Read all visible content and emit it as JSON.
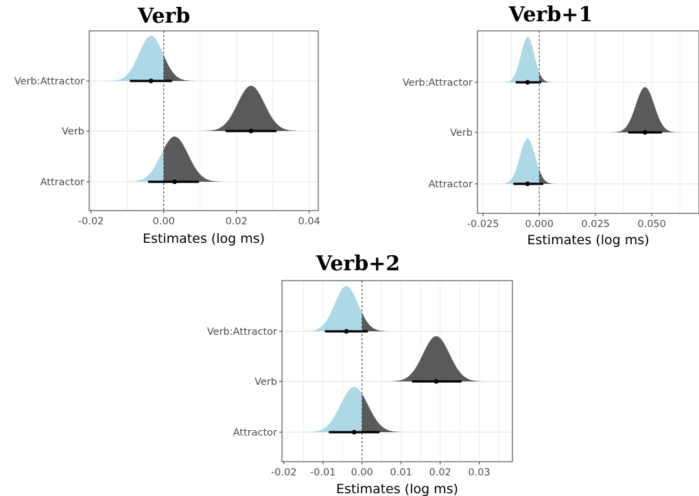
{
  "chart_data": [
    {
      "type": "density-interval",
      "title": "Verb",
      "xlabel": "Estimates (log ms)",
      "ylabel": "",
      "categories": [
        "Verb:Attractor",
        "Verb",
        "Attractor"
      ],
      "xlim": [
        -0.0205,
        0.0425
      ],
      "x_ticks": [
        -0.02,
        0.0,
        0.02,
        0.04
      ],
      "x_tick_labels": [
        "-0.02",
        "0.00",
        "0.02",
        "0.04"
      ],
      "reference_line": 0,
      "estimates": [
        {
          "term": "Verb:Attractor",
          "mean": -0.0035,
          "ci": [
            -0.0093,
            0.0023
          ],
          "sd": 0.0033
        },
        {
          "term": "Verb",
          "mean": 0.024,
          "ci": [
            0.017,
            0.031
          ],
          "sd": 0.0037
        },
        {
          "term": "Attractor",
          "mean": 0.003,
          "ci": [
            -0.0043,
            0.0097
          ],
          "sd": 0.0037
        }
      ],
      "legend": "none",
      "grid": true
    },
    {
      "type": "density-interval",
      "title": "Verb+1",
      "xlabel": "Estimates (log ms)",
      "ylabel": "",
      "categories": [
        "Verb:Attractor",
        "Verb",
        "Attractor"
      ],
      "xlim": [
        -0.0275,
        0.071
      ],
      "x_ticks": [
        -0.025,
        0.0,
        0.025,
        0.05
      ],
      "x_tick_labels": [
        "-0.025",
        "0.000",
        "0.025",
        "0.050"
      ],
      "reference_line": 0,
      "estimates": [
        {
          "term": "Verb:Attractor",
          "mean": -0.0052,
          "ci": [
            -0.0105,
            0.0008
          ],
          "sd": 0.003
        },
        {
          "term": "Verb",
          "mean": 0.047,
          "ci": [
            0.0395,
            0.0545
          ],
          "sd": 0.0041
        },
        {
          "term": "Attractor",
          "mean": -0.0052,
          "ci": [
            -0.0115,
            0.0018
          ],
          "sd": 0.0034
        }
      ],
      "legend": "none",
      "grid": true
    },
    {
      "type": "density-interval",
      "title": "Verb+2",
      "xlabel": "Estimates (log ms)",
      "ylabel": "",
      "categories": [
        "Verb:Attractor",
        "Verb",
        "Attractor"
      ],
      "xlim": [
        -0.0205,
        0.0385
      ],
      "x_ticks": [
        -0.02,
        -0.01,
        0.0,
        0.01,
        0.02,
        0.03
      ],
      "x_tick_labels": [
        "-0.02",
        "-0.01",
        "0.00",
        "0.01",
        "0.02",
        "0.03"
      ],
      "reference_line": 0,
      "estimates": [
        {
          "term": "Verb:Attractor",
          "mean": -0.004,
          "ci": [
            -0.0095,
            0.0015
          ],
          "sd": 0.003
        },
        {
          "term": "Verb",
          "mean": 0.019,
          "ci": [
            0.0128,
            0.0255
          ],
          "sd": 0.0034
        },
        {
          "term": "Attractor",
          "mean": -0.002,
          "ci": [
            -0.0085,
            0.0045
          ],
          "sd": 0.0035
        }
      ],
      "legend": "none",
      "grid": true
    }
  ],
  "colors": {
    "below_zero": "#add8e6",
    "above_zero": "#5a5a5a",
    "interval": "#000000",
    "grid": "#ebebeb",
    "panel_border": "#333333",
    "tick_text": "#4d4d4d"
  }
}
